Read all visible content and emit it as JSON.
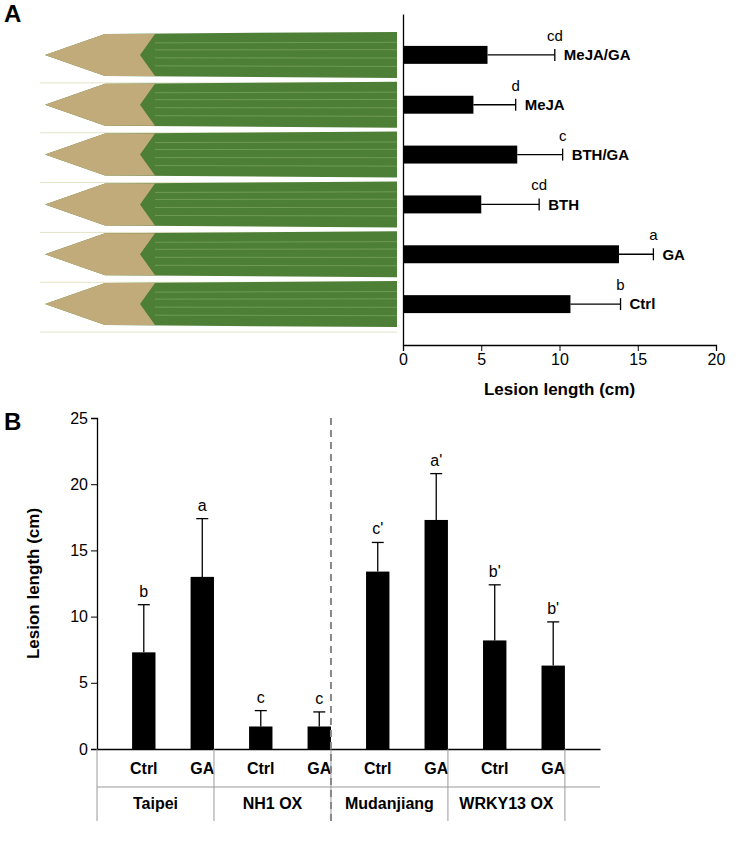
{
  "chart_data": [
    {
      "title": "A",
      "type": "bar",
      "orientation": "horizontal",
      "categories": [
        "MeJA/GA",
        "MeJA",
        "BTH/GA",
        "BTH",
        "GA",
        "Ctrl"
      ],
      "values": [
        5.4,
        4.5,
        7.3,
        5.0,
        13.8,
        10.7
      ],
      "errors": [
        4.3,
        2.7,
        2.9,
        3.7,
        2.2,
        3.2
      ],
      "letters": [
        "cd",
        "d",
        "c",
        "cd",
        "a",
        "b"
      ],
      "x_label": "Lesion length (cm)",
      "xlim": [
        0,
        20
      ],
      "xticks": [
        0,
        5,
        10,
        15,
        20
      ],
      "color": "#000000",
      "tick_labels": "x"
    },
    {
      "title": "B",
      "type": "bar",
      "categories": [
        "Ctrl",
        "GA",
        "Ctrl",
        "GA",
        "Ctrl",
        "GA",
        "Ctrl",
        "GA"
      ],
      "groups": [
        "Taipei",
        "NH1 OX",
        "Mudanjiang",
        "WRKY13 OX"
      ],
      "values": [
        7.3,
        13.0,
        1.7,
        1.7,
        13.4,
        17.3,
        8.2,
        6.3
      ],
      "errors": [
        3.6,
        4.4,
        1.2,
        1.1,
        2.2,
        3.5,
        4.2,
        3.3
      ],
      "letters": [
        "b",
        "a",
        "c",
        "c",
        "c'",
        "a'",
        "b'",
        "b'"
      ],
      "y_label": "Lesion length (cm)",
      "ylim": [
        0,
        25
      ],
      "yticks": [
        0,
        5,
        10,
        15,
        20,
        25
      ],
      "color": "#000000"
    }
  ]
}
